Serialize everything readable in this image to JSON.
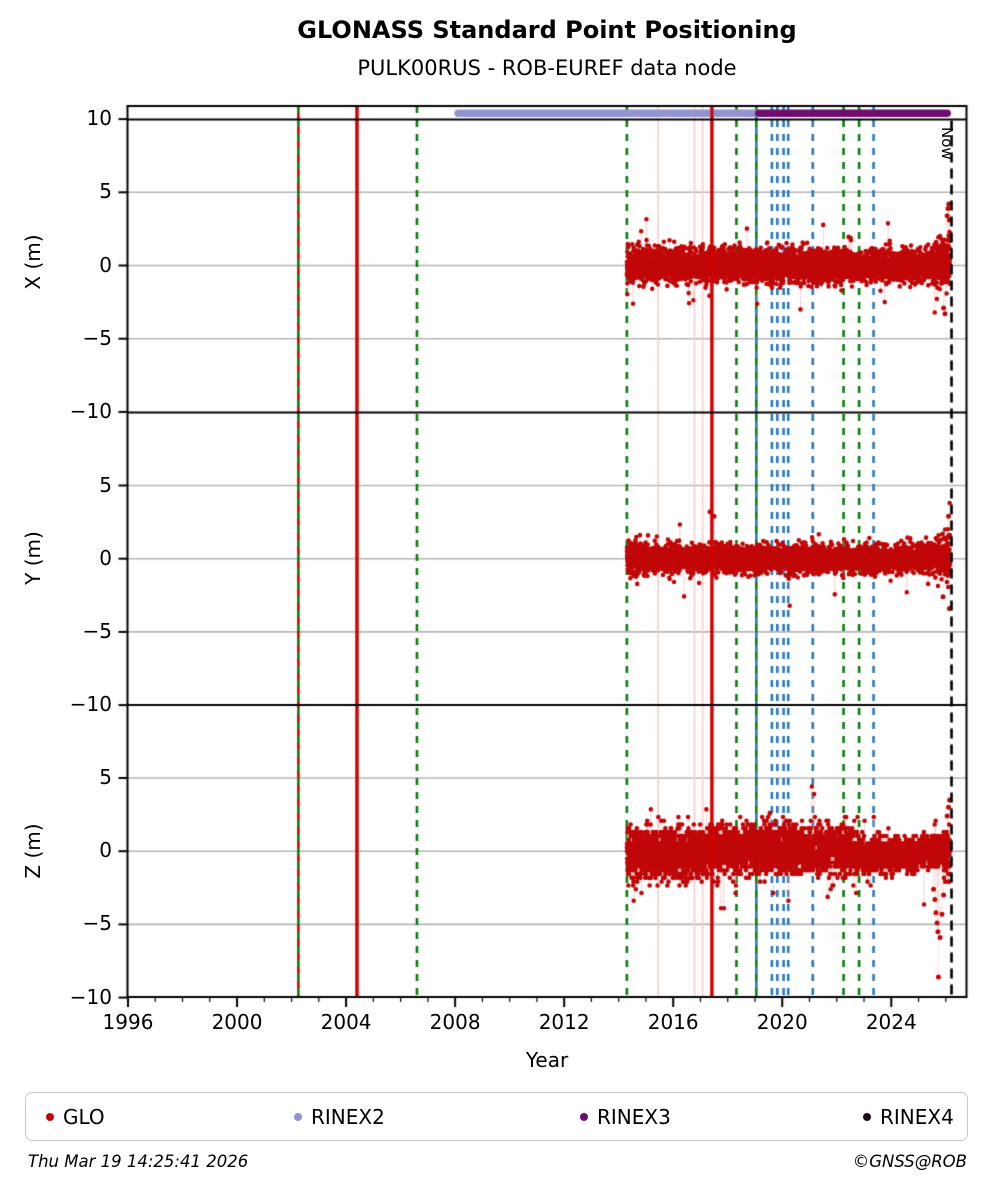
{
  "header": {
    "title": "GLONASS Standard Point Positioning",
    "subtitle": "PULK00RUS - ROB-EUREF data node"
  },
  "footer": {
    "timestamp": "Thu Mar 19 14:25:41 2026",
    "credit": "©GNSS@ROB"
  },
  "legend": {
    "items": [
      {
        "label": "GLO",
        "color": "#c00606"
      },
      {
        "label": "RINEX2",
        "color": "#9393cf"
      },
      {
        "label": "RINEX3",
        "color": "#6e0d6e"
      },
      {
        "label": "RINEX4",
        "color": "#1c0b20"
      }
    ]
  },
  "colors": {
    "scatter": "#c00606",
    "connector": "rgba(246,170,170,0.40)",
    "event_red": "#d40000",
    "event_green": "#0a7d0a",
    "event_blue": "#2979bd",
    "faint_pink": "#f6cdcd",
    "grid": "#b4b4b4",
    "spine": "#000000",
    "bar_rinex2": "#9393cf",
    "bar_rinex3": "#6e0d6e",
    "now_line": "#000000"
  },
  "chart_data": {
    "type": "scatter",
    "xlabel": "Year",
    "xlim": [
      1995.95,
      2026.8
    ],
    "x_ticks": {
      "values": [
        1996,
        2000,
        2004,
        2008,
        2012,
        2016,
        2020,
        2024
      ],
      "labels": [
        "1996",
        "2000",
        "2004",
        "2008",
        "2012",
        "2016",
        "2020",
        "2024"
      ],
      "minor_step": 1,
      "minor_from": 1996,
      "minor_to": 2026
    },
    "grid": "horizontal-only",
    "legend_position": "bottom",
    "panels": [
      {
        "name": "x",
        "ylabel": "X (m)",
        "ylim": [
          -10,
          10
        ],
        "yticks": {
          "values": [
            10,
            5,
            0,
            -5,
            -10
          ],
          "labels": [
            "10",
            "5",
            "0",
            "−5",
            "−10"
          ]
        },
        "grid_values": [
          5,
          0,
          -5
        ]
      },
      {
        "name": "y",
        "ylabel": "Y (m)",
        "ylim": [
          -10,
          10
        ],
        "yticks": {
          "values": [
            5,
            0,
            -5,
            -10
          ],
          "labels": [
            "5",
            "0",
            "−5",
            "−10"
          ]
        },
        "grid_values": [
          5,
          0,
          -5
        ]
      },
      {
        "name": "z",
        "ylabel": "Z (m)",
        "ylim": [
          -10,
          10
        ],
        "yticks": {
          "values": [
            5,
            0,
            -5,
            -10
          ],
          "labels": [
            "5",
            "0",
            "−5",
            "−10"
          ]
        },
        "grid_values": [
          5,
          0,
          -5
        ]
      }
    ],
    "now_marker": {
      "year": 2026.21,
      "label": "Now",
      "style": "dashed-black"
    },
    "event_lines": [
      {
        "year": 2002.25,
        "style": "dashed",
        "colors": [
          "event_green",
          "event_red"
        ]
      },
      {
        "year": 2004.4,
        "style": "solid",
        "colors": [
          "event_red"
        ]
      },
      {
        "year": 2006.6,
        "style": "dashed",
        "colors": [
          "event_green"
        ]
      },
      {
        "year": 2014.3,
        "style": "dashed",
        "colors": [
          "event_green"
        ]
      },
      {
        "year": 2015.45,
        "style": "faint",
        "colors": [
          "faint_pink"
        ]
      },
      {
        "year": 2016.78,
        "style": "faint",
        "colors": [
          "faint_pink"
        ]
      },
      {
        "year": 2017.08,
        "style": "faint",
        "colors": [
          "faint_pink"
        ]
      },
      {
        "year": 2017.42,
        "style": "solid",
        "colors": [
          "event_red"
        ]
      },
      {
        "year": 2018.32,
        "style": "dashed",
        "colors": [
          "event_green"
        ]
      },
      {
        "year": 2019.05,
        "style": "dashed",
        "colors": [
          "event_green",
          "event_blue"
        ]
      },
      {
        "year": 2019.62,
        "style": "dashed",
        "colors": [
          "event_blue"
        ]
      },
      {
        "year": 2019.82,
        "style": "dashed",
        "colors": [
          "event_blue"
        ]
      },
      {
        "year": 2020.05,
        "style": "dashed",
        "colors": [
          "event_blue"
        ]
      },
      {
        "year": 2020.22,
        "style": "dashed",
        "colors": [
          "event_blue"
        ]
      },
      {
        "year": 2021.12,
        "style": "dashed",
        "colors": [
          "event_blue"
        ]
      },
      {
        "year": 2022.25,
        "style": "dashed",
        "colors": [
          "event_green"
        ]
      },
      {
        "year": 2022.82,
        "style": "dashed",
        "colors": [
          "event_green"
        ]
      },
      {
        "year": 2023.35,
        "style": "dashed",
        "colors": [
          "event_blue"
        ]
      }
    ],
    "availability_bars": [
      {
        "name": "RINEX2",
        "start": 2008.0,
        "end": 2019.2,
        "color": "bar_rinex2"
      },
      {
        "name": "RINEX3",
        "start": 2019.03,
        "end": 2026.16,
        "color": "bar_rinex3"
      }
    ],
    "scatter": {
      "series_label": "GLO",
      "start": 2014.3,
      "end": 2026.16,
      "points_per_year": 365,
      "seed": 42,
      "panels": [
        {
          "name": "x",
          "segments": [
            {
              "from": 2014.3,
              "to": 2017.0,
              "mean": 0.0,
              "sd": 0.6
            },
            {
              "from": 2017.0,
              "to": 2025.3,
              "mean": 0.0,
              "sd": 0.55
            },
            {
              "from": 2025.3,
              "to": 2026.16,
              "mean": 0.35,
              "sd": 1.05,
              "ramp": true
            }
          ],
          "outlier_prob": 0.004,
          "outlier_range": [
            1.8,
            3.2
          ],
          "spikes": [
            [
              2026.05,
              3.4
            ],
            [
              2026.08,
              3.9
            ],
            [
              2026.11,
              4.2
            ],
            [
              2026.13,
              3.1
            ],
            [
              2025.92,
              -2.9
            ],
            [
              2025.97,
              -3.3
            ]
          ]
        },
        {
          "name": "y",
          "segments": [
            {
              "from": 2014.3,
              "to": 2015.1,
              "mean": 0.1,
              "sd": 0.55
            },
            {
              "from": 2015.1,
              "to": 2025.5,
              "mean": 0.0,
              "sd": 0.45
            },
            {
              "from": 2025.5,
              "to": 2026.16,
              "mean": 0.0,
              "sd": 0.85,
              "ramp": true
            }
          ],
          "outlier_prob": 0.003,
          "outlier_range": [
            1.5,
            2.8
          ],
          "spikes": [
            [
              2017.35,
              3.2
            ],
            [
              2017.5,
              2.9
            ],
            [
              2026.1,
              2.9
            ],
            [
              2026.13,
              -3.4
            ],
            [
              2025.9,
              -2.6
            ]
          ]
        },
        {
          "name": "z",
          "quantize": 0.26,
          "segments": [
            {
              "from": 2014.3,
              "to": 2017.0,
              "mean": -0.1,
              "sd": 0.85
            },
            {
              "from": 2017.0,
              "to": 2022.8,
              "mean": 0.1,
              "sd": 0.8
            },
            {
              "from": 2022.8,
              "to": 2025.0,
              "mean": -0.3,
              "sd": 0.6
            },
            {
              "from": 2025.0,
              "to": 2026.16,
              "mean": 0.1,
              "sd": 0.75,
              "ramp": true
            }
          ],
          "outlier_prob": 0.006,
          "outlier_range": [
            2.0,
            3.5
          ],
          "spikes": [
            [
              2025.55,
              -2.6
            ],
            [
              2025.6,
              -3.3
            ],
            [
              2025.64,
              -4.2
            ],
            [
              2025.68,
              -4.9
            ],
            [
              2025.71,
              -5.5
            ],
            [
              2025.73,
              -8.6
            ],
            [
              2025.79,
              -5.9
            ],
            [
              2025.86,
              -4.3
            ],
            [
              2025.92,
              -3.0
            ],
            [
              2026.05,
              2.4
            ],
            [
              2026.1,
              3.0
            ],
            [
              2026.14,
              3.5
            ]
          ]
        }
      ]
    }
  }
}
